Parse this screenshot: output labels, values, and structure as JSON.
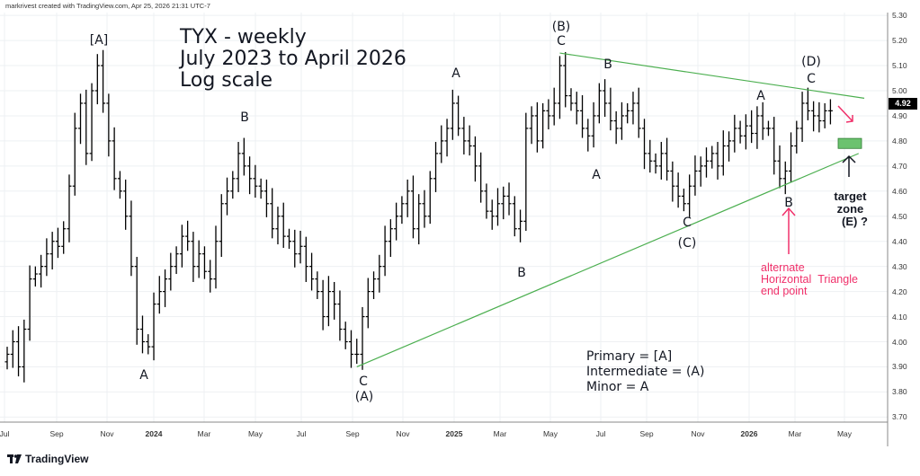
{
  "header": "markrivest created with TradingView.com, Apr 25, 2026 21:31 UTC-7",
  "title_lines": [
    "TYX - weekly",
    "July 2023 to April 2026",
    "Log scale"
  ],
  "legend": [
    "Primary = [A]",
    "Intermediate = (A)",
    "Minor = A"
  ],
  "last_price": "4.92",
  "annotations": {
    "primary_a": "[A]",
    "a1": "A",
    "b1": "B",
    "c1": "C",
    "int_a": "(A)",
    "a2": "A",
    "b2": "B",
    "int_b": "(B)",
    "c2": "C",
    "b3": "B",
    "a3": "A",
    "c3": "C",
    "int_c": "(C)",
    "a4": "A",
    "int_d": "(D)",
    "c4": "C",
    "b4": "B"
  },
  "target": {
    "line1": "target",
    "line2": "zone",
    "line3": "(E) ?"
  },
  "alternate": {
    "line1": "alternate",
    "line2": "Horizontal",
    "line3": "Triangle",
    "line4": "end point"
  },
  "brand": "TradingView",
  "colors": {
    "trendline": "#4caf50",
    "target_zone": "#6cc26f",
    "pink": "#f0306a",
    "bars": "#000000"
  },
  "chart_data": {
    "type": "ohlc-bar",
    "symbol": "TYX",
    "interval": "weekly",
    "scale": "log",
    "ylim": [
      3.7,
      5.3
    ],
    "y_ticks": [
      "5.30",
      "5.20",
      "5.10",
      "5.00",
      "4.90",
      "4.80",
      "4.70",
      "4.60",
      "4.50",
      "4.40",
      "4.30",
      "4.20",
      "4.10",
      "4.00",
      "3.90",
      "3.80",
      "3.70"
    ],
    "x_ticks": [
      "Jul",
      "Sep",
      "Nov",
      "2024",
      "Mar",
      "May",
      "Jul",
      "Sep",
      "Nov",
      "2025",
      "Mar",
      "May",
      "Jul",
      "Sep",
      "Nov",
      "2026",
      "Mar",
      "May"
    ],
    "closes": [
      3.95,
      4.0,
      3.9,
      4.05,
      4.25,
      4.27,
      4.3,
      4.35,
      4.4,
      4.38,
      4.45,
      4.62,
      4.85,
      4.95,
      4.75,
      5.0,
      5.1,
      4.95,
      4.8,
      4.65,
      4.6,
      4.5,
      4.3,
      4.05,
      4.0,
      3.98,
      4.15,
      4.2,
      4.25,
      4.3,
      4.35,
      4.42,
      4.4,
      4.3,
      4.35,
      4.28,
      4.25,
      4.4,
      4.55,
      4.6,
      4.65,
      4.75,
      4.7,
      4.65,
      4.62,
      4.6,
      4.55,
      4.45,
      4.5,
      4.42,
      4.4,
      4.35,
      4.38,
      4.3,
      4.25,
      4.2,
      4.1,
      4.2,
      4.15,
      4.05,
      4.0,
      3.95,
      3.95,
      4.1,
      4.2,
      4.25,
      4.3,
      4.4,
      4.45,
      4.5,
      4.55,
      4.6,
      4.45,
      4.55,
      4.5,
      4.65,
      4.75,
      4.8,
      4.85,
      4.95,
      4.85,
      4.8,
      4.78,
      4.7,
      4.6,
      4.52,
      4.5,
      4.55,
      4.58,
      4.55,
      4.45,
      4.48,
      4.85,
      4.9,
      4.8,
      4.92,
      4.9,
      4.95,
      5.1,
      4.98,
      4.95,
      4.92,
      4.85,
      4.82,
      4.9,
      5.0,
      4.95,
      4.88,
      4.85,
      4.9,
      4.92,
      4.95,
      4.85,
      4.75,
      4.72,
      4.7,
      4.75,
      4.68,
      4.62,
      4.58,
      4.55,
      4.62,
      4.68,
      4.7,
      4.72,
      4.75,
      4.7,
      4.78,
      4.8,
      4.85,
      4.82,
      4.86,
      4.83,
      4.9,
      4.85,
      4.85,
      4.72,
      4.65,
      4.68,
      4.78,
      4.85,
      4.95,
      4.92,
      4.9,
      4.88,
      4.92,
      4.92
    ],
    "trendlines": [
      {
        "name": "upper",
        "from": {
          "week": 98,
          "price": 5.15
        },
        "to": {
          "week": 152,
          "price": 4.97
        }
      },
      {
        "name": "lower",
        "from": {
          "week": 62,
          "price": 3.9
        },
        "to": {
          "week": 151,
          "price": 4.75
        }
      }
    ],
    "target_zone": {
      "price_high": 4.81,
      "price_low": 4.77
    }
  }
}
